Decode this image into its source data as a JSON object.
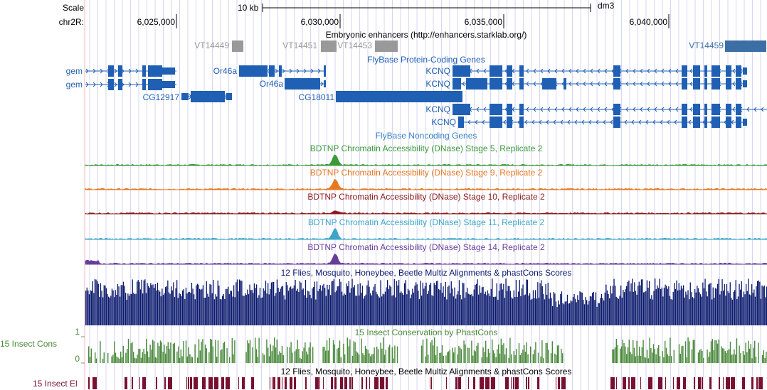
{
  "ruler": {
    "scale_label": "Scale",
    "chrom_label": "chr2R:",
    "scale_bar_text": "10 kb",
    "assembly": "dm3",
    "ticks": [
      "6,025,000",
      "6,030,000",
      "6,035,000",
      "6,040,000"
    ]
  },
  "tracks": {
    "enhancers": {
      "title": "Embryonic enhancers (http://enhancers.starklab.org/)",
      "items": [
        "VT14449",
        "VT14451",
        "VT14453",
        "VT14459"
      ]
    },
    "flybase_coding": {
      "title": "FlyBase Protein-Coding Genes",
      "genes": [
        "gem",
        "gem",
        "Or46a",
        "Or46a",
        "CG12917",
        "CG18011",
        "KCNQ",
        "KCNQ",
        "KCNQ",
        "KCNQ"
      ]
    },
    "flybase_noncoding": {
      "title": "FlyBase Noncoding Genes"
    },
    "dnase": [
      {
        "title": "BDTNP Chromatin Accessibility (DNase) Stage 5, Replicate 2",
        "color": "#3a9a3a"
      },
      {
        "title": "BDTNP Chromatin Accessibility (DNase) Stage 9, Replicate 2",
        "color": "#e8781e"
      },
      {
        "title": "BDTNP Chromatin Accessibility (DNase) Stage 10, Replicate 2",
        "color": "#8b1a1a"
      },
      {
        "title": "BDTNP Chromatin Accessibility (DNase) Stage 11, Replicate 2",
        "color": "#3ca6c8"
      },
      {
        "title": "BDTNP Chromatin Accessibility (DNase) Stage 14, Replicate 2",
        "color": "#6a3d9a"
      }
    ],
    "multiz": {
      "title": "12 Flies, Mosquito, Honeybee, Beetle Multiz Alignments & phastCons Scores",
      "color": "#0b1a6e"
    },
    "phastcons": {
      "title": "15 Insect Conservation by PhastCons",
      "side_label": "15 Insect Cons",
      "max_label": "1",
      "min_label": "0",
      "color": "#4a8a3a"
    },
    "elements": {
      "title": "12 Flies, Mosquito, Honeybee, Beetle Multiz Alignments & phastCons Scores",
      "side_label": "15 Insect El",
      "color": "#7a1030"
    }
  },
  "colors": {
    "gene_blue": "#1f5fb4",
    "enhancer_gray": "#999999",
    "enhancer_highlight": "#3b6ea5",
    "grid_line": "#d6d6f5",
    "left_border": "#f0b8b8"
  }
}
